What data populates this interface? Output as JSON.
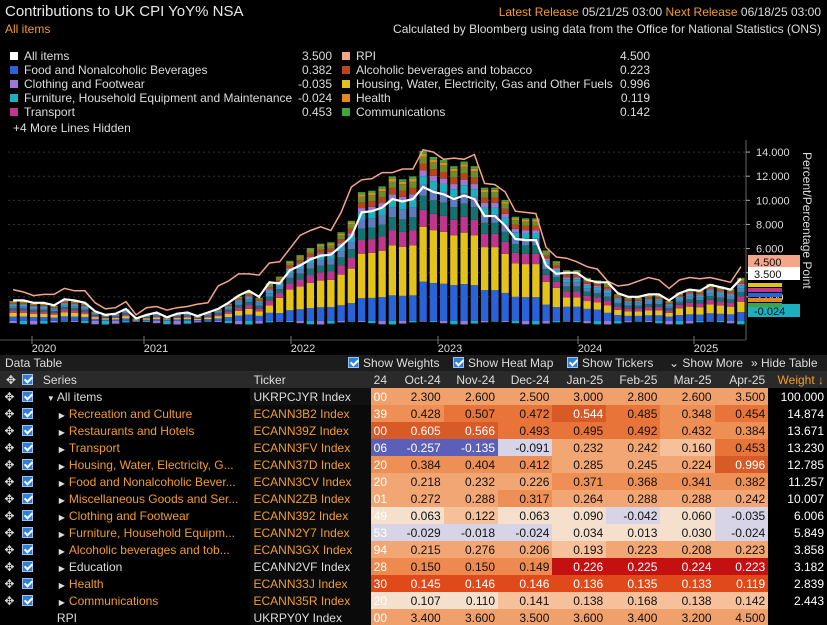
{
  "header": {
    "title": "Contributions to UK CPI YoY% NSA",
    "subtitle": "All items",
    "latest_label": "Latest Release",
    "latest_value": "05/21/25 03:00",
    "next_label": "Next Release",
    "next_value": "06/18/25 03:00",
    "source": "Calculated by Bloomberg using data from the Office for National Statistics (ONS)"
  },
  "legend": {
    "left": [
      {
        "name": "All items",
        "value": "3.500",
        "color": "#ffffff"
      },
      {
        "name": "Food and Nonalcoholic Beverages",
        "value": "0.382",
        "color": "#2a63d8"
      },
      {
        "name": "Clothing and Footwear",
        "value": "-0.035",
        "color": "#9a78d6"
      },
      {
        "name": "Furniture, Household Equipment and Maintenance",
        "value": "-0.024",
        "color": "#1ab0bf"
      },
      {
        "name": "Transport",
        "value": "0.453",
        "color": "#c0368f"
      }
    ],
    "right": [
      {
        "name": "RPI",
        "value": "4.500",
        "color": "#f4a58a"
      },
      {
        "name": "Alcoholic beverages and tobacco",
        "value": "0.223",
        "color": "#b8441f"
      },
      {
        "name": "Housing, Water, Electricity, Gas and Other Fuels",
        "value": "0.996",
        "color": "#e3c21a"
      },
      {
        "name": "Health",
        "value": "0.119",
        "color": "#e8871e"
      },
      {
        "name": "Communications",
        "value": "0.142",
        "color": "#3fa53f"
      }
    ],
    "more": "+4 More Lines Hidden"
  },
  "chart_data": {
    "type": "bar",
    "ylabel": "Percent/Percentage Point",
    "ylim": [
      -1,
      15
    ],
    "yticks": [
      "14.000",
      "12.000",
      "10.000",
      "8.000",
      "6.000",
      "4.000",
      "2.000"
    ],
    "xticks": [
      "2020",
      "2021",
      "2022",
      "2023",
      "2024",
      "2025"
    ],
    "start": "2019-08",
    "series": [
      {
        "name": "Food and Nonalcoholic Beverages",
        "color": "#2a63d8"
      },
      {
        "name": "Housing, Water, Electricity, Gas and Other Fuels",
        "color": "#e3c21a"
      },
      {
        "name": "Transport",
        "color": "#c0368f"
      },
      {
        "name": "Recreation and Culture",
        "color": "#15726f"
      },
      {
        "name": "Restaurants and Hotels",
        "color": "#5d7bbd"
      },
      {
        "name": "Furniture, Household Equipment and Maintenance",
        "color": "#1ab0bf"
      },
      {
        "name": "Clothing and Footwear",
        "color": "#9a78d6"
      },
      {
        "name": "Alcoholic beverages and tobacco",
        "color": "#b8441f"
      },
      {
        "name": "Miscellaneous Goods and Services",
        "color": "#6d8c2c"
      },
      {
        "name": "Health",
        "color": "#e8871e"
      },
      {
        "name": "Communications",
        "color": "#3fa53f"
      }
    ],
    "all_items": [
      1.7,
      1.7,
      1.5,
      1.5,
      1.3,
      1.8,
      1.7,
      1.5,
      0.8,
      0.5,
      0.6,
      1.0,
      0.2,
      0.5,
      0.7,
      0.3,
      0.6,
      0.7,
      0.4,
      0.7,
      1.0,
      1.5,
      2.1,
      2.5,
      2.0,
      3.2,
      3.1,
      4.2,
      4.6,
      5.1,
      5.4,
      5.5,
      6.2,
      7.0,
      9.0,
      9.1,
      9.4,
      10.1,
      9.9,
      10.1,
      11.1,
      10.7,
      10.5,
      10.1,
      10.4,
      10.1,
      8.7,
      8.7,
      7.9,
      6.8,
      6.7,
      6.7,
      4.6,
      3.9,
      4.0,
      4.0,
      3.4,
      3.2,
      3.2,
      2.3,
      2.0,
      2.0,
      2.2,
      2.2,
      1.7,
      2.3,
      2.6,
      2.5,
      3.0,
      2.8,
      2.6,
      3.5
    ],
    "rpi": [
      2.6,
      2.4,
      2.1,
      2.2,
      2.2,
      2.7,
      2.5,
      2.5,
      1.5,
      1.0,
      1.1,
      1.6,
      0.5,
      1.1,
      1.2,
      0.9,
      1.1,
      1.2,
      1.4,
      1.5,
      2.9,
      3.3,
      3.9,
      3.9,
      3.8,
      4.8,
      4.9,
      6.0,
      7.1,
      7.5,
      7.8,
      7.5,
      9.0,
      11.1,
      11.7,
      11.8,
      12.3,
      12.3,
      12.6,
      12.6,
      14.2,
      14.0,
      13.4,
      13.5,
      13.4,
      13.8,
      11.4,
      11.3,
      10.7,
      9.1,
      9.0,
      8.9,
      6.1,
      5.3,
      5.2,
      4.9,
      4.5,
      4.3,
      3.3,
      2.9,
      3.0,
      3.3,
      3.6,
      3.4,
      2.7,
      3.4,
      3.6,
      3.5,
      3.6,
      3.4,
      3.2,
      4.5
    ]
  },
  "right_tags": [
    "4.500",
    "3.500",
    "-0.024"
  ],
  "datatable": {
    "title": "Data Table",
    "options": [
      "Show Weights",
      "Show Heat Map",
      "Show Tickers",
      "Show More",
      "Hide Table"
    ],
    "headers": {
      "series": "Series",
      "ticker": "Ticker",
      "trunc": "24",
      "months": [
        "Oct-24",
        "Nov-24",
        "Dec-24",
        "Jan-25",
        "Feb-25",
        "Mar-25",
        "Apr-25"
      ],
      "weight": "Weight ↓"
    },
    "rows": [
      {
        "series": "All items",
        "ticker": "UKRPCJYR Index",
        "trunc": "00",
        "values": [
          "2.300",
          "2.600",
          "2.500",
          "3.000",
          "2.800",
          "2.600",
          "3.500"
        ],
        "weight": "100.000"
      },
      {
        "series": "Recreation and Culture",
        "ticker": "ECANN3B2 Index",
        "trunc": "39",
        "values": [
          "0.428",
          "0.507",
          "0.472",
          "0.544",
          "0.485",
          "0.348",
          "0.454"
        ],
        "weight": "14.874"
      },
      {
        "series": "Restaurants and Hotels",
        "ticker": "ECANN39Z Index",
        "trunc": "00",
        "values": [
          "0.605",
          "0.566",
          "0.493",
          "0.495",
          "0.492",
          "0.432",
          "0.384"
        ],
        "weight": "13.671"
      },
      {
        "series": "Transport",
        "ticker": "ECANN3FV Index",
        "trunc": "06",
        "values": [
          "-0.257",
          "-0.135",
          "-0.091",
          "0.232",
          "0.242",
          "0.160",
          "0.453"
        ],
        "weight": "13.230"
      },
      {
        "series": "Housing, Water, Electricity, G...",
        "ticker": "ECANN37D Index",
        "trunc": "20",
        "values": [
          "0.384",
          "0.404",
          "0.412",
          "0.285",
          "0.245",
          "0.224",
          "0.996"
        ],
        "weight": "12.785"
      },
      {
        "series": "Food and Nonalcoholic Bever...",
        "ticker": "ECANN3CV Index",
        "trunc": "20",
        "values": [
          "0.218",
          "0.232",
          "0.226",
          "0.371",
          "0.368",
          "0.341",
          "0.382"
        ],
        "weight": "11.257"
      },
      {
        "series": "Miscellaneous Goods and Ser...",
        "ticker": "ECANN2ZB Index",
        "trunc": "01",
        "values": [
          "0.272",
          "0.288",
          "0.317",
          "0.264",
          "0.288",
          "0.288",
          "0.242"
        ],
        "weight": "10.007"
      },
      {
        "series": "Clothing and Footwear",
        "ticker": "ECANN392 Index",
        "trunc": "49",
        "values": [
          "0.063",
          "0.122",
          "0.063",
          "0.090",
          "-0.042",
          "0.060",
          "-0.035"
        ],
        "weight": "6.006"
      },
      {
        "series": "Furniture, Household Equipm...",
        "ticker": "ECANN2Y7 Index",
        "trunc": "53",
        "values": [
          "-0.029",
          "-0.018",
          "-0.024",
          "0.034",
          "0.013",
          "0.030",
          "-0.024"
        ],
        "weight": "5.849"
      },
      {
        "series": "Alcoholic beverages and tob...",
        "ticker": "ECANN3GX Index",
        "trunc": "94",
        "values": [
          "0.215",
          "0.276",
          "0.206",
          "0.193",
          "0.223",
          "0.208",
          "0.223"
        ],
        "weight": "3.858"
      },
      {
        "series": "Education",
        "ticker": "ECANN2VF Index",
        "trunc": "28",
        "values": [
          "0.150",
          "0.150",
          "0.149",
          "0.226",
          "0.225",
          "0.224",
          "0.223"
        ],
        "weight": "3.182"
      },
      {
        "series": "Health",
        "ticker": "ECANN33J Index",
        "trunc": "30",
        "values": [
          "0.145",
          "0.146",
          "0.146",
          "0.136",
          "0.135",
          "0.133",
          "0.119"
        ],
        "weight": "2.839"
      },
      {
        "series": "Communications",
        "ticker": "ECANN35R Index",
        "trunc": "20",
        "values": [
          "0.107",
          "0.110",
          "0.141",
          "0.138",
          "0.168",
          "0.138",
          "0.142"
        ],
        "weight": "2.443"
      },
      {
        "series": "RPI",
        "ticker": "UKRPY0Y Index",
        "trunc": "00",
        "values": [
          "3.400",
          "3.600",
          "3.500",
          "3.600",
          "3.400",
          "3.200",
          "4.500"
        ],
        "weight": ""
      }
    ]
  }
}
